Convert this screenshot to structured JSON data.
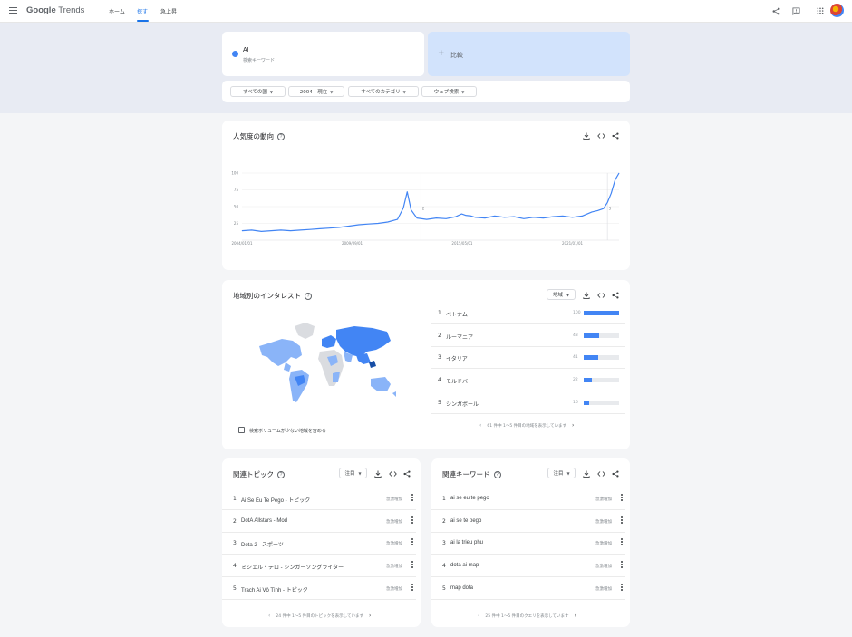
{
  "topbar": {
    "logo_google": "Google",
    "logo_trends": "Trends",
    "nav": [
      "ホーム",
      "探す",
      "急上昇"
    ],
    "active_index": 1,
    "icons": [
      "share-icon",
      "feedback-icon",
      "apps-icon"
    ]
  },
  "search": {
    "term": "AI",
    "term_type": "検索キーワード",
    "compare_plus": "+",
    "compare_label": "比較"
  },
  "filters": [
    "すべての国",
    "2004 - 現在",
    "すべてのカテゴリ",
    "ウェブ検索"
  ],
  "interest_over_time": {
    "title": "人気度の動向",
    "help": "?",
    "chart_data": {
      "type": "line",
      "title": "",
      "xlabel": "",
      "ylabel": "",
      "x_ticks": [
        "2004/01/01",
        "2009/09/01",
        "2015/05/01",
        "2021/01/01"
      ],
      "y_ticks": [
        100,
        75,
        50,
        25
      ],
      "ylim": [
        0,
        100
      ],
      "annotations": [
        "2",
        "3"
      ],
      "series": [
        {
          "name": "AI",
          "color": "#4285f4",
          "x": [
            2004.0,
            2004.5,
            2005.0,
            2005.5,
            2006.0,
            2006.5,
            2007.0,
            2007.5,
            2008.0,
            2008.5,
            2009.0,
            2009.5,
            2010.0,
            2010.5,
            2011.0,
            2011.5,
            2012.0,
            2012.3,
            2012.5,
            2012.7,
            2013.0,
            2013.5,
            2014.0,
            2014.5,
            2015.0,
            2015.3,
            2015.5,
            2015.8,
            2016.0,
            2016.5,
            2017.0,
            2017.5,
            2018.0,
            2018.5,
            2019.0,
            2019.5,
            2020.0,
            2020.5,
            2021.0,
            2021.5,
            2022.0,
            2022.3,
            2022.6,
            2022.8,
            2023.0,
            2023.2,
            2023.4
          ],
          "values": [
            14,
            15,
            13,
            14,
            15,
            14,
            15,
            16,
            17,
            18,
            19,
            21,
            23,
            24,
            25,
            27,
            31,
            48,
            72,
            45,
            33,
            31,
            33,
            32,
            35,
            39,
            37,
            36,
            34,
            33,
            36,
            34,
            35,
            32,
            34,
            33,
            35,
            36,
            34,
            36,
            42,
            44,
            47,
            56,
            70,
            90,
            100
          ]
        }
      ]
    }
  },
  "regions": {
    "title": "地域別のインタレスト",
    "help": "?",
    "select_label": "地域",
    "rows": [
      {
        "rank": "1",
        "name": "ベトナム",
        "value": 100
      },
      {
        "rank": "2",
        "name": "ルーマニア",
        "value": 43
      },
      {
        "rank": "3",
        "name": "イタリア",
        "value": 41
      },
      {
        "rank": "4",
        "name": "モルドバ",
        "value": 22
      },
      {
        "rank": "5",
        "name": "シンガポール",
        "value": 16
      }
    ],
    "pager_text": "61 件中 1～5 件目の地域を表示しています",
    "checkbox_label": "検索ボリュームが少ない地域を含める"
  },
  "related_topics": {
    "title": "関連トピック",
    "help": "?",
    "select_label": "注目",
    "rows": [
      {
        "rank": "1",
        "name": "Ai Se Eu Te Pego - トピック",
        "badge": "急激増加"
      },
      {
        "rank": "2",
        "name": "DotA Allstars - Mod",
        "badge": "急激増加"
      },
      {
        "rank": "3",
        "name": "Dota 2 - スポーツ",
        "badge": "急激増加"
      },
      {
        "rank": "4",
        "name": "ミシェル・テロ - シンガーソングライター",
        "badge": "急激増加"
      },
      {
        "rank": "5",
        "name": "Trach Ai Vô Tình - トピック",
        "badge": "急激増加"
      }
    ],
    "pager_text": "24 件中 1～5 件目のトピックを表示しています"
  },
  "related_queries": {
    "title": "関連キーワード",
    "help": "?",
    "select_label": "注目",
    "rows": [
      {
        "rank": "1",
        "name": "ai se eu te pego",
        "badge": "急激増加"
      },
      {
        "rank": "2",
        "name": "ai se te pego",
        "badge": "急激増加"
      },
      {
        "rank": "3",
        "name": "ai la trieu phu",
        "badge": "急激増加"
      },
      {
        "rank": "4",
        "name": "dota ai map",
        "badge": "急激増加"
      },
      {
        "rank": "5",
        "name": "map dota",
        "badge": "急激増加"
      }
    ],
    "pager_text": "25 件中 1～5 件目のクエリを表示しています"
  },
  "colors": {
    "accent": "#4285f4",
    "nav_active": "#1a73e8",
    "compare_bg": "#d2e3fc"
  }
}
